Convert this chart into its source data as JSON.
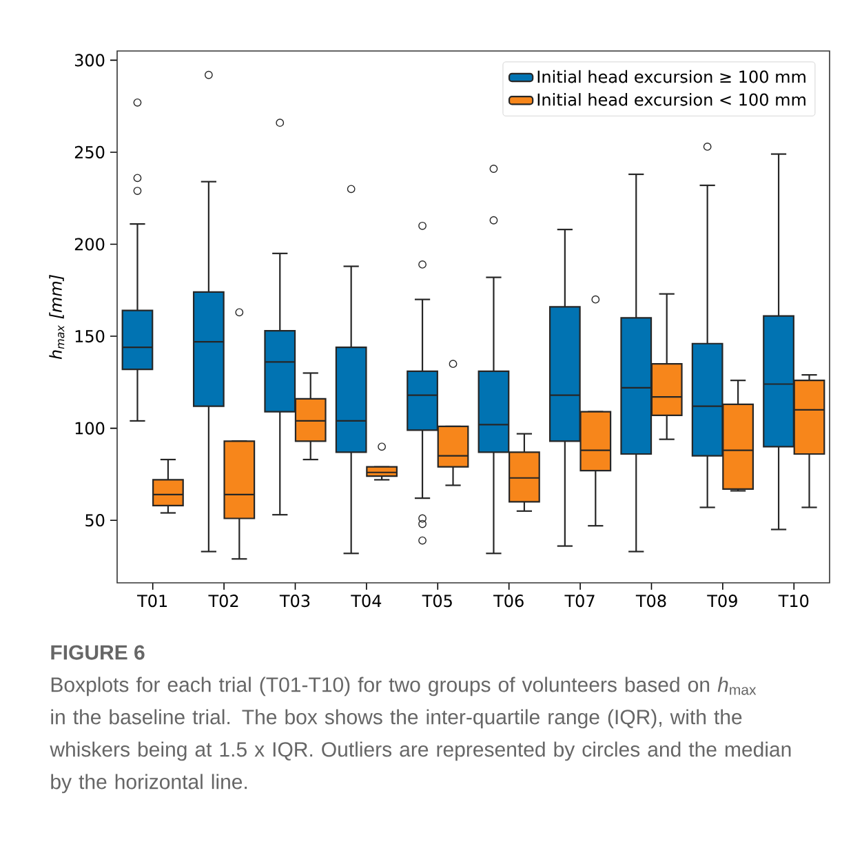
{
  "chart_data": {
    "type": "box",
    "ylabel": "h$_{max}$ [mm]",
    "categories": [
      "T01",
      "T02",
      "T03",
      "T04",
      "T05",
      "T06",
      "T07",
      "T08",
      "T09",
      "T10"
    ],
    "series": [
      {
        "name": "Initial head excursion ≥ 100 mm",
        "color": "#0173b2",
        "boxes": [
          {
            "low": 104,
            "q1": 132,
            "median": 144,
            "q3": 164,
            "high": 211,
            "outliers": [
              277,
              236,
              229
            ]
          },
          {
            "low": 33,
            "q1": 112,
            "median": 147,
            "q3": 174,
            "high": 234,
            "outliers": [
              292
            ]
          },
          {
            "low": 53,
            "q1": 109,
            "median": 136,
            "q3": 153,
            "high": 195,
            "outliers": [
              266
            ]
          },
          {
            "low": 32,
            "q1": 87,
            "median": 104,
            "q3": 144,
            "high": 188,
            "outliers": [
              230
            ]
          },
          {
            "low": 62,
            "q1": 99,
            "median": 118,
            "q3": 131,
            "high": 170,
            "outliers": [
              210,
              189,
              51,
              48,
              39
            ]
          },
          {
            "low": 32,
            "q1": 87,
            "median": 102,
            "q3": 131,
            "high": 182,
            "outliers": [
              241,
              213
            ]
          },
          {
            "low": 36,
            "q1": 93,
            "median": 118,
            "q3": 166,
            "high": 208
          },
          {
            "low": 33,
            "q1": 86,
            "median": 122,
            "q3": 160,
            "high": 238
          },
          {
            "low": 57,
            "q1": 85,
            "median": 112,
            "q3": 146,
            "high": 232,
            "outliers": [
              253
            ]
          },
          {
            "low": 45,
            "q1": 90,
            "median": 124,
            "q3": 161,
            "high": 249
          }
        ]
      },
      {
        "name": "Initial head excursion < 100 mm",
        "color": "#f7861b",
        "boxes": [
          {
            "low": 54,
            "q1": 58,
            "median": 64,
            "q3": 72,
            "high": 83
          },
          {
            "low": 29,
            "q1": 51,
            "median": 64,
            "q3": 93,
            "high": 93,
            "outliers": [
              163
            ]
          },
          {
            "low": 83,
            "q1": 93,
            "median": 104,
            "q3": 116,
            "high": 130
          },
          {
            "low": 72,
            "q1": 74,
            "median": 76,
            "q3": 79,
            "high": 79,
            "outliers": [
              90
            ]
          },
          {
            "low": 69,
            "q1": 79,
            "median": 85,
            "q3": 101,
            "high": 101,
            "outliers": [
              135
            ]
          },
          {
            "low": 55,
            "q1": 60,
            "median": 73,
            "q3": 87,
            "high": 97
          },
          {
            "low": 47,
            "q1": 77,
            "median": 88,
            "q3": 109,
            "high": 109,
            "outliers": [
              170
            ]
          },
          {
            "low": 94,
            "q1": 107,
            "median": 117,
            "q3": 135,
            "high": 173
          },
          {
            "low": 66,
            "q1": 67,
            "median": 88,
            "q3": 113,
            "high": 126
          },
          {
            "low": 57,
            "q1": 86,
            "median": 110,
            "q3": 126,
            "high": 129
          }
        ]
      }
    ],
    "ylim": [
      16,
      305
    ],
    "yticks": [
      50,
      100,
      150,
      200,
      250,
      300
    ],
    "legend": "top right",
    "annotations": [
      "FIGURE 6",
      "Boxplots for each trial (T01-T10) for two groups of volunteers based on *h*$_{max}$ in the baseline trial. The box shows the inter-quartile range (IQR), with the whiskers being at 1.5 x IQR. Outliers are represented by circles and the median by the horizontal line."
    ]
  }
}
